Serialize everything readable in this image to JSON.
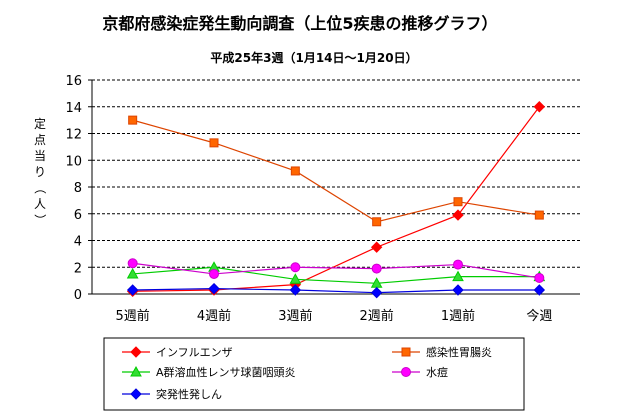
{
  "chart_data": {
    "type": "line",
    "title": "京都府感染症発生動向調査（上位5疾患の推移グラフ）",
    "subtitle": "平成25年3週（1月14日～1月20日）",
    "ylabel": "定点当り（人）",
    "ylim": [
      0,
      16
    ],
    "ytick_step": 2,
    "yticks": [
      "0",
      "2",
      "4",
      "6",
      "8",
      "10",
      "12",
      "14",
      "16"
    ],
    "grid": true,
    "legend_position": "bottom",
    "categories": [
      "5週前",
      "4週前",
      "3週前",
      "2週前",
      "1週前",
      "今週"
    ],
    "series": [
      {
        "name": "インフルエンザ",
        "values": [
          0.2,
          0.3,
          0.7,
          3.5,
          5.9,
          14.0
        ],
        "color": "#ff0000",
        "marker": "diamond",
        "marker_fill": "#ff0000"
      },
      {
        "name": "感染性胃腸炎",
        "values": [
          13.0,
          11.3,
          9.2,
          5.4,
          6.9,
          5.9
        ],
        "color": "#dd4400",
        "marker": "square",
        "marker_fill": "#ff6600"
      },
      {
        "name": "A群溶血性レンサ球菌咽頭炎",
        "values": [
          1.5,
          2.0,
          1.1,
          0.8,
          1.3,
          1.3
        ],
        "color": "#00cc00",
        "marker": "triangle",
        "marker_fill": "#33dd33"
      },
      {
        "name": "水痘",
        "values": [
          2.3,
          1.5,
          2.0,
          1.9,
          2.2,
          1.2
        ],
        "color": "#cc00cc",
        "marker": "circle",
        "marker_fill": "#ff00ff"
      },
      {
        "name": "突発性発しん",
        "values": [
          0.3,
          0.4,
          0.3,
          0.1,
          0.3,
          0.3
        ],
        "color": "#0000dd",
        "marker": "diamond",
        "marker_fill": "#0000ff"
      }
    ]
  }
}
